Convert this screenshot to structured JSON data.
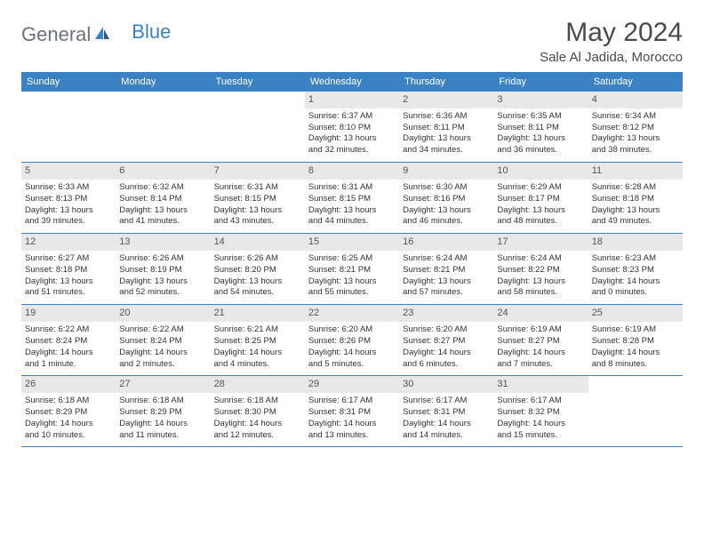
{
  "logo": {
    "textGray": "General",
    "textBlue": "Blue"
  },
  "title": "May 2024",
  "location": "Sale Al Jadida, Morocco",
  "colors": {
    "headerBlue": "#3b82c4",
    "dayNumBg": "#e8e8e8",
    "textGray": "#6b7280",
    "textDark": "#4a4a4a"
  },
  "weekdays": [
    "Sunday",
    "Monday",
    "Tuesday",
    "Wednesday",
    "Thursday",
    "Friday",
    "Saturday"
  ],
  "weeks": [
    [
      {
        "num": "",
        "lines": []
      },
      {
        "num": "",
        "lines": []
      },
      {
        "num": "",
        "lines": []
      },
      {
        "num": "1",
        "lines": [
          "Sunrise: 6:37 AM",
          "Sunset: 8:10 PM",
          "Daylight: 13 hours",
          "and 32 minutes."
        ]
      },
      {
        "num": "2",
        "lines": [
          "Sunrise: 6:36 AM",
          "Sunset: 8:11 PM",
          "Daylight: 13 hours",
          "and 34 minutes."
        ]
      },
      {
        "num": "3",
        "lines": [
          "Sunrise: 6:35 AM",
          "Sunset: 8:11 PM",
          "Daylight: 13 hours",
          "and 36 minutes."
        ]
      },
      {
        "num": "4",
        "lines": [
          "Sunrise: 6:34 AM",
          "Sunset: 8:12 PM",
          "Daylight: 13 hours",
          "and 38 minutes."
        ]
      }
    ],
    [
      {
        "num": "5",
        "lines": [
          "Sunrise: 6:33 AM",
          "Sunset: 8:13 PM",
          "Daylight: 13 hours",
          "and 39 minutes."
        ]
      },
      {
        "num": "6",
        "lines": [
          "Sunrise: 6:32 AM",
          "Sunset: 8:14 PM",
          "Daylight: 13 hours",
          "and 41 minutes."
        ]
      },
      {
        "num": "7",
        "lines": [
          "Sunrise: 6:31 AM",
          "Sunset: 8:15 PM",
          "Daylight: 13 hours",
          "and 43 minutes."
        ]
      },
      {
        "num": "8",
        "lines": [
          "Sunrise: 6:31 AM",
          "Sunset: 8:15 PM",
          "Daylight: 13 hours",
          "and 44 minutes."
        ]
      },
      {
        "num": "9",
        "lines": [
          "Sunrise: 6:30 AM",
          "Sunset: 8:16 PM",
          "Daylight: 13 hours",
          "and 46 minutes."
        ]
      },
      {
        "num": "10",
        "lines": [
          "Sunrise: 6:29 AM",
          "Sunset: 8:17 PM",
          "Daylight: 13 hours",
          "and 48 minutes."
        ]
      },
      {
        "num": "11",
        "lines": [
          "Sunrise: 6:28 AM",
          "Sunset: 8:18 PM",
          "Daylight: 13 hours",
          "and 49 minutes."
        ]
      }
    ],
    [
      {
        "num": "12",
        "lines": [
          "Sunrise: 6:27 AM",
          "Sunset: 8:18 PM",
          "Daylight: 13 hours",
          "and 51 minutes."
        ]
      },
      {
        "num": "13",
        "lines": [
          "Sunrise: 6:26 AM",
          "Sunset: 8:19 PM",
          "Daylight: 13 hours",
          "and 52 minutes."
        ]
      },
      {
        "num": "14",
        "lines": [
          "Sunrise: 6:26 AM",
          "Sunset: 8:20 PM",
          "Daylight: 13 hours",
          "and 54 minutes."
        ]
      },
      {
        "num": "15",
        "lines": [
          "Sunrise: 6:25 AM",
          "Sunset: 8:21 PM",
          "Daylight: 13 hours",
          "and 55 minutes."
        ]
      },
      {
        "num": "16",
        "lines": [
          "Sunrise: 6:24 AM",
          "Sunset: 8:21 PM",
          "Daylight: 13 hours",
          "and 57 minutes."
        ]
      },
      {
        "num": "17",
        "lines": [
          "Sunrise: 6:24 AM",
          "Sunset: 8:22 PM",
          "Daylight: 13 hours",
          "and 58 minutes."
        ]
      },
      {
        "num": "18",
        "lines": [
          "Sunrise: 6:23 AM",
          "Sunset: 8:23 PM",
          "Daylight: 14 hours",
          "and 0 minutes."
        ]
      }
    ],
    [
      {
        "num": "19",
        "lines": [
          "Sunrise: 6:22 AM",
          "Sunset: 8:24 PM",
          "Daylight: 14 hours",
          "and 1 minute."
        ]
      },
      {
        "num": "20",
        "lines": [
          "Sunrise: 6:22 AM",
          "Sunset: 8:24 PM",
          "Daylight: 14 hours",
          "and 2 minutes."
        ]
      },
      {
        "num": "21",
        "lines": [
          "Sunrise: 6:21 AM",
          "Sunset: 8:25 PM",
          "Daylight: 14 hours",
          "and 4 minutes."
        ]
      },
      {
        "num": "22",
        "lines": [
          "Sunrise: 6:20 AM",
          "Sunset: 8:26 PM",
          "Daylight: 14 hours",
          "and 5 minutes."
        ]
      },
      {
        "num": "23",
        "lines": [
          "Sunrise: 6:20 AM",
          "Sunset: 8:27 PM",
          "Daylight: 14 hours",
          "and 6 minutes."
        ]
      },
      {
        "num": "24",
        "lines": [
          "Sunrise: 6:19 AM",
          "Sunset: 8:27 PM",
          "Daylight: 14 hours",
          "and 7 minutes."
        ]
      },
      {
        "num": "25",
        "lines": [
          "Sunrise: 6:19 AM",
          "Sunset: 8:28 PM",
          "Daylight: 14 hours",
          "and 8 minutes."
        ]
      }
    ],
    [
      {
        "num": "26",
        "lines": [
          "Sunrise: 6:18 AM",
          "Sunset: 8:29 PM",
          "Daylight: 14 hours",
          "and 10 minutes."
        ]
      },
      {
        "num": "27",
        "lines": [
          "Sunrise: 6:18 AM",
          "Sunset: 8:29 PM",
          "Daylight: 14 hours",
          "and 11 minutes."
        ]
      },
      {
        "num": "28",
        "lines": [
          "Sunrise: 6:18 AM",
          "Sunset: 8:30 PM",
          "Daylight: 14 hours",
          "and 12 minutes."
        ]
      },
      {
        "num": "29",
        "lines": [
          "Sunrise: 6:17 AM",
          "Sunset: 8:31 PM",
          "Daylight: 14 hours",
          "and 13 minutes."
        ]
      },
      {
        "num": "30",
        "lines": [
          "Sunrise: 6:17 AM",
          "Sunset: 8:31 PM",
          "Daylight: 14 hours",
          "and 14 minutes."
        ]
      },
      {
        "num": "31",
        "lines": [
          "Sunrise: 6:17 AM",
          "Sunset: 8:32 PM",
          "Daylight: 14 hours",
          "and 15 minutes."
        ]
      },
      {
        "num": "",
        "lines": []
      }
    ]
  ]
}
